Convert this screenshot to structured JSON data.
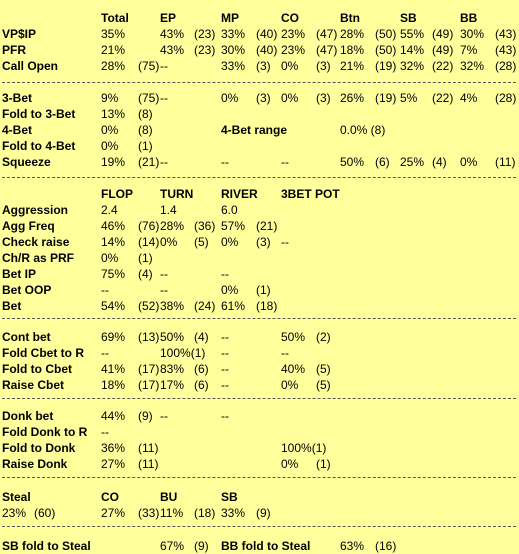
{
  "section1": {
    "headers": [
      "Total",
      "EP",
      "MP",
      "CO",
      "Btn",
      "SB",
      "BB"
    ],
    "rows": [
      {
        "label": "VP$IP",
        "cells": [
          [
            "35%",
            ""
          ],
          [
            "43%",
            "(23)"
          ],
          [
            "33%",
            "(40)"
          ],
          [
            "23%",
            "(47)"
          ],
          [
            "28%",
            "(50)"
          ],
          [
            "55%",
            "(49)"
          ],
          [
            "30%",
            "(43)"
          ]
        ]
      },
      {
        "label": "PFR",
        "cells": [
          [
            "21%",
            ""
          ],
          [
            "43%",
            "(23)"
          ],
          [
            "30%",
            "(40)"
          ],
          [
            "23%",
            "(47)"
          ],
          [
            "18%",
            "(50)"
          ],
          [
            "14%",
            "(49)"
          ],
          [
            "7%",
            "(43)"
          ]
        ]
      },
      {
        "label": "Call Open",
        "cells": [
          [
            "28%",
            "(75)"
          ],
          [
            "--",
            ""
          ],
          [
            "33%",
            "(3)"
          ],
          [
            "0%",
            "(3)"
          ],
          [
            "21%",
            "(19)"
          ],
          [
            "32%",
            "(22)"
          ],
          [
            "32%",
            "(28)"
          ]
        ]
      }
    ]
  },
  "section2": {
    "rows": [
      {
        "label": "3-Bet",
        "cells": [
          [
            "9%",
            "(75)"
          ],
          [
            "--",
            ""
          ],
          [
            "0%",
            "(3)"
          ],
          [
            "0%",
            "(3)"
          ],
          [
            "26%",
            "(19)"
          ],
          [
            "5%",
            "(22)"
          ],
          [
            "4%",
            "(28)"
          ]
        ]
      },
      {
        "label": "Fold to 3-Bet",
        "cells": [
          [
            "13%",
            "(8)"
          ]
        ]
      },
      {
        "label": "4-Bet",
        "cells": [
          [
            "0%",
            "(8)"
          ]
        ],
        "extra_label": "4-Bet range",
        "extra_value": "0.0% (8)"
      },
      {
        "label": "Fold to 4-Bet",
        "cells": [
          [
            "0%",
            "(1)"
          ]
        ]
      },
      {
        "label": "Squeeze",
        "cells": [
          [
            "19%",
            "(21)"
          ],
          [
            "--",
            ""
          ],
          [
            "--",
            ""
          ],
          [
            "--",
            ""
          ],
          [
            "50%",
            "(6)"
          ],
          [
            "25%",
            "(4)"
          ],
          [
            "0%",
            "(11)"
          ]
        ]
      }
    ]
  },
  "section3": {
    "headers": [
      "FLOP",
      "TURN",
      "RIVER",
      "3BET POT"
    ],
    "rows": [
      {
        "label": "Aggression",
        "cells": [
          [
            "2.4",
            ""
          ],
          [
            "1.4",
            ""
          ],
          [
            "6.0",
            ""
          ]
        ]
      },
      {
        "label": "Agg Freq",
        "cells": [
          [
            "46%",
            "(76)"
          ],
          [
            "28%",
            "(36)"
          ],
          [
            "57%",
            "(21)"
          ]
        ]
      },
      {
        "label": "Check raise",
        "cells": [
          [
            "14%",
            "(14)"
          ],
          [
            "0%",
            "(5)"
          ],
          [
            "0%",
            "(3)"
          ],
          [
            "--",
            ""
          ]
        ]
      },
      {
        "label": "Ch/R as PRF",
        "cells": [
          [
            "0%",
            "(1)"
          ]
        ]
      },
      {
        "label": "Bet IP",
        "cells": [
          [
            "75%",
            "(4)"
          ],
          [
            "--",
            ""
          ],
          [
            "--",
            ""
          ]
        ]
      },
      {
        "label": "Bet OOP",
        "cells": [
          [
            "--",
            ""
          ],
          [
            "--",
            ""
          ],
          [
            "0%",
            "(1)"
          ]
        ]
      },
      {
        "label": "Bet",
        "cells": [
          [
            "54%",
            "(52)"
          ],
          [
            "38%",
            "(24)"
          ],
          [
            "61%",
            "(18)"
          ]
        ]
      }
    ]
  },
  "section4": {
    "rows": [
      {
        "label": "Cont bet",
        "cells": [
          [
            "69%",
            "(13)"
          ],
          [
            "50%",
            "(4)"
          ],
          [
            "--",
            ""
          ],
          [
            "50%",
            "(2)"
          ]
        ]
      },
      {
        "label": "Fold Cbet to R",
        "cells": [
          [
            "--",
            ""
          ],
          [
            "100%(1)",
            ""
          ],
          [
            "--",
            ""
          ],
          [
            "--",
            ""
          ]
        ]
      },
      {
        "label": "Fold to Cbet",
        "cells": [
          [
            "41%",
            "(17)"
          ],
          [
            "83%",
            "(6)"
          ],
          [
            "--",
            ""
          ],
          [
            "40%",
            "(5)"
          ]
        ]
      },
      {
        "label": "Raise Cbet",
        "cells": [
          [
            "18%",
            "(17)"
          ],
          [
            "17%",
            "(6)"
          ],
          [
            "--",
            ""
          ],
          [
            "0%",
            "(5)"
          ]
        ]
      }
    ]
  },
  "section5": {
    "rows": [
      {
        "label": "Donk bet",
        "cells": [
          [
            "44%",
            "(9)"
          ],
          [
            "--",
            ""
          ],
          [
            "--",
            ""
          ]
        ]
      },
      {
        "label": "Fold Donk to R",
        "cells": [
          [
            "--",
            ""
          ]
        ]
      },
      {
        "label": "Fold to Donk",
        "cells": [
          [
            "36%",
            "(11)"
          ],
          [
            "",
            ""
          ],
          [
            "",
            ""
          ],
          [
            "100%(1)",
            ""
          ]
        ]
      },
      {
        "label": "Raise Donk",
        "cells": [
          [
            "27%",
            "(11)"
          ],
          [
            "",
            ""
          ],
          [
            "",
            ""
          ],
          [
            "0%",
            "(1)"
          ]
        ]
      }
    ]
  },
  "section6": {
    "label": "Steal",
    "headers": [
      "CO",
      "BU",
      "SB"
    ],
    "total": [
      "23%",
      "(60)"
    ],
    "cells": [
      [
        "27%",
        "(33)"
      ],
      [
        "11%",
        "(18)"
      ],
      [
        "33%",
        "(9)"
      ]
    ]
  },
  "section7": {
    "sb_label": "SB fold to Steal",
    "sb_value": [
      "67%",
      "(9)"
    ],
    "bb_label": "BB fold to Steal",
    "bb_value": [
      "63%",
      "(16)"
    ]
  }
}
